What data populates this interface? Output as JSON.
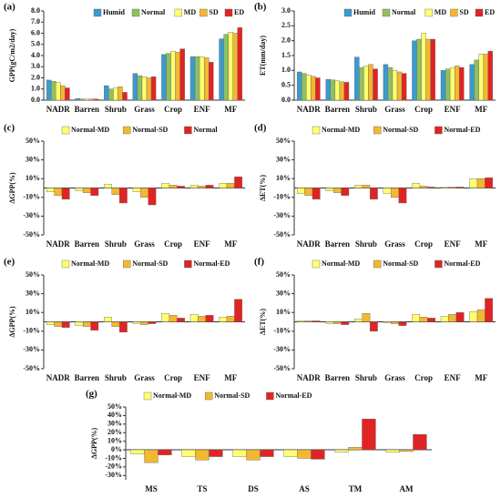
{
  "chart_data": [
    {
      "type": "bar",
      "panel": "(a)",
      "ylabel": "GPP(gC/m2/day)",
      "categories": [
        "NADR",
        "Barren",
        "Shrub",
        "Grass",
        "Crop",
        "ENF",
        "MF"
      ],
      "series": [
        {
          "name": "Humid",
          "color": "#3a9ad0",
          "values": [
            1.8,
            0.15,
            1.3,
            2.4,
            4.1,
            3.9,
            5.5
          ]
        },
        {
          "name": "Normal",
          "color": "#8fc060",
          "values": [
            1.7,
            0.1,
            1.0,
            2.2,
            4.2,
            3.9,
            5.9
          ]
        },
        {
          "name": "MD",
          "color": "#ffff70",
          "values": [
            1.6,
            0.1,
            1.1,
            2.1,
            4.4,
            3.9,
            6.1
          ]
        },
        {
          "name": "SD",
          "color": "#f2b830",
          "values": [
            1.3,
            0.1,
            1.2,
            2.0,
            4.3,
            3.8,
            6.0
          ]
        },
        {
          "name": "ED",
          "color": "#e02424",
          "values": [
            1.1,
            0.1,
            0.7,
            2.1,
            4.6,
            3.4,
            6.5
          ]
        }
      ],
      "ylim": [
        0,
        8
      ],
      "yticks": [
        {
          "value": 0,
          "label": "0.0"
        },
        {
          "value": 1,
          "label": "1.0"
        },
        {
          "value": 2,
          "label": "2.0"
        },
        {
          "value": 3,
          "label": "3.0"
        },
        {
          "value": 4,
          "label": "4.0"
        },
        {
          "value": 5,
          "label": "5.0"
        },
        {
          "value": 6,
          "label": "6.0"
        },
        {
          "value": 7,
          "label": "7.0"
        },
        {
          "value": 8,
          "label": "8.0"
        }
      ]
    },
    {
      "type": "bar",
      "panel": "(b)",
      "ylabel": "ET(mm/day)",
      "categories": [
        "NADR",
        "Barren",
        "Shrub",
        "Grass",
        "Crop",
        "ENF",
        "MF"
      ],
      "series": [
        {
          "name": "Humid",
          "color": "#3a9ad0",
          "values": [
            0.95,
            0.7,
            1.45,
            1.2,
            2.0,
            1.0,
            1.2
          ]
        },
        {
          "name": "Normal",
          "color": "#8fc060",
          "values": [
            0.9,
            0.68,
            1.1,
            1.1,
            2.05,
            1.05,
            1.35
          ]
        },
        {
          "name": "MD",
          "color": "#ffff70",
          "values": [
            0.85,
            0.65,
            1.15,
            1.0,
            2.25,
            1.1,
            1.55
          ]
        },
        {
          "name": "SD",
          "color": "#f2b830",
          "values": [
            0.8,
            0.62,
            1.2,
            0.95,
            2.05,
            1.15,
            1.55
          ]
        },
        {
          "name": "ED",
          "color": "#e02424",
          "values": [
            0.75,
            0.6,
            1.05,
            0.9,
            2.05,
            1.1,
            1.65
          ]
        }
      ],
      "ylim": [
        0,
        3
      ],
      "yticks": [
        {
          "value": 0,
          "label": "0.0"
        },
        {
          "value": 0.5,
          "label": "0.5"
        },
        {
          "value": 1,
          "label": "1.0"
        },
        {
          "value": 1.5,
          "label": "1.5"
        },
        {
          "value": 2,
          "label": "2.0"
        },
        {
          "value": 2.5,
          "label": "2.5"
        },
        {
          "value": 3,
          "label": "3.0"
        }
      ]
    },
    {
      "type": "bar",
      "panel": "(c)",
      "ylabel": "ΔGPP(%)",
      "categories": [
        "NADR",
        "Barren",
        "Shrub",
        "Grass",
        "Crop",
        "ENF",
        "MF"
      ],
      "series": [
        {
          "name": "Normal-MD",
          "color": "#ffff70",
          "values": [
            -4,
            -3,
            4,
            -4,
            5,
            3,
            5
          ]
        },
        {
          "name": "Normal-SD",
          "color": "#f2b830",
          "values": [
            -8,
            -5,
            -7,
            -10,
            3,
            2,
            5
          ]
        },
        {
          "name": "Normal",
          "color": "#e02424",
          "values": [
            -12,
            -8,
            -16,
            -18,
            2,
            3,
            12
          ]
        }
      ],
      "ylim": [
        -50,
        50
      ],
      "yticks": [
        {
          "value": -50,
          "label": "-50%"
        },
        {
          "value": -30,
          "label": "-30%"
        },
        {
          "value": -10,
          "label": "-10%"
        },
        {
          "value": 10,
          "label": "10%"
        },
        {
          "value": 30,
          "label": "30%"
        },
        {
          "value": 50,
          "label": "50%"
        }
      ]
    },
    {
      "type": "bar",
      "panel": "(d)",
      "ylabel": "ΔET(%)",
      "categories": [
        "NADR",
        "Barren",
        "Shrub",
        "Grass",
        "Crop",
        "ENF",
        "MF"
      ],
      "series": [
        {
          "name": "Normal-MD",
          "color": "#ffff70",
          "values": [
            -6,
            -3,
            3,
            -6,
            5,
            1,
            10
          ]
        },
        {
          "name": "Normal-SD",
          "color": "#f2b830",
          "values": [
            -8,
            -5,
            3,
            -10,
            2,
            1,
            10
          ]
        },
        {
          "name": "Normal-ED",
          "color": "#e02424",
          "values": [
            -12,
            -8,
            -12,
            -16,
            1,
            1,
            11
          ]
        }
      ],
      "ylim": [
        -50,
        50
      ],
      "yticks": [
        {
          "value": -50,
          "label": "-50%"
        },
        {
          "value": -30,
          "label": "-30%"
        },
        {
          "value": -10,
          "label": "-10%"
        },
        {
          "value": 10,
          "label": "10%"
        },
        {
          "value": 30,
          "label": "30%"
        },
        {
          "value": 50,
          "label": "50%"
        }
      ]
    },
    {
      "type": "bar",
      "panel": "(e)",
      "ylabel": "ΔGPP(%)",
      "categories": [
        "NADR",
        "Barren",
        "Shrub",
        "Grass",
        "Crop",
        "ENF",
        "MF"
      ],
      "series": [
        {
          "name": "Normal-MD",
          "color": "#ffff70",
          "values": [
            -3,
            -4,
            5,
            -2,
            9,
            8,
            5
          ]
        },
        {
          "name": "Normal-SD",
          "color": "#f2b830",
          "values": [
            -5,
            -5,
            -5,
            -3,
            7,
            6,
            6
          ]
        },
        {
          "name": "Normal-ED",
          "color": "#e02424",
          "values": [
            -6,
            -9,
            -11,
            -2,
            4,
            7,
            24
          ]
        }
      ],
      "ylim": [
        -50,
        50
      ],
      "yticks": [
        {
          "value": -50,
          "label": "-50%"
        },
        {
          "value": -30,
          "label": "-30%"
        },
        {
          "value": -10,
          "label": "-10%"
        },
        {
          "value": 10,
          "label": "10%"
        },
        {
          "value": 30,
          "label": "30%"
        },
        {
          "value": 50,
          "label": "50%"
        }
      ]
    },
    {
      "type": "bar",
      "panel": "(f)",
      "ylabel": "ΔET(%)",
      "categories": [
        "NADR",
        "Barren",
        "Shrub",
        "Grass",
        "Crop",
        "ENF",
        "MF"
      ],
      "series": [
        {
          "name": "Normal-MD",
          "color": "#ffff70",
          "values": [
            1,
            -2,
            3,
            -1,
            8,
            6,
            11
          ]
        },
        {
          "name": "Normal-SD",
          "color": "#f2b830",
          "values": [
            1,
            -2,
            9,
            -2,
            5,
            8,
            13
          ]
        },
        {
          "name": "Normal-ED",
          "color": "#e02424",
          "values": [
            1,
            -3,
            -10,
            -4,
            4,
            10,
            25
          ]
        }
      ],
      "ylim": [
        -50,
        50
      ],
      "yticks": [
        {
          "value": -50,
          "label": "-50%"
        },
        {
          "value": -30,
          "label": "-30%"
        },
        {
          "value": -10,
          "label": "-10%"
        },
        {
          "value": 10,
          "label": "10%"
        },
        {
          "value": 30,
          "label": "30%"
        },
        {
          "value": 50,
          "label": "50%"
        }
      ]
    },
    {
      "type": "bar",
      "panel": "(g)",
      "ylabel": "ΔGPP(%)",
      "categories": [
        "MS",
        "TS",
        "DS",
        "AS",
        "TM",
        "AM"
      ],
      "series": [
        {
          "name": "Normal-MD",
          "color": "#ffff70",
          "values": [
            -5,
            -8,
            -8,
            -8,
            -3,
            -3
          ]
        },
        {
          "name": "Normal-SD",
          "color": "#f2b830",
          "values": [
            -15,
            -12,
            -12,
            -10,
            3,
            -2
          ]
        },
        {
          "name": "Normal-ED",
          "color": "#e02424",
          "values": [
            -6,
            -8,
            -8,
            -11,
            36,
            18
          ]
        }
      ],
      "ylim": [
        -35,
        50
      ],
      "yticks": [
        {
          "value": -30,
          "label": "-30%"
        },
        {
          "value": -20,
          "label": "-20%"
        },
        {
          "value": -10,
          "label": "-10%"
        },
        {
          "value": 0,
          "label": "0%"
        },
        {
          "value": 10,
          "label": "10%"
        },
        {
          "value": 20,
          "label": "20%"
        },
        {
          "value": 30,
          "label": "30%"
        },
        {
          "value": 40,
          "label": "40%"
        },
        {
          "value": 50,
          "label": "50%"
        }
      ]
    }
  ]
}
